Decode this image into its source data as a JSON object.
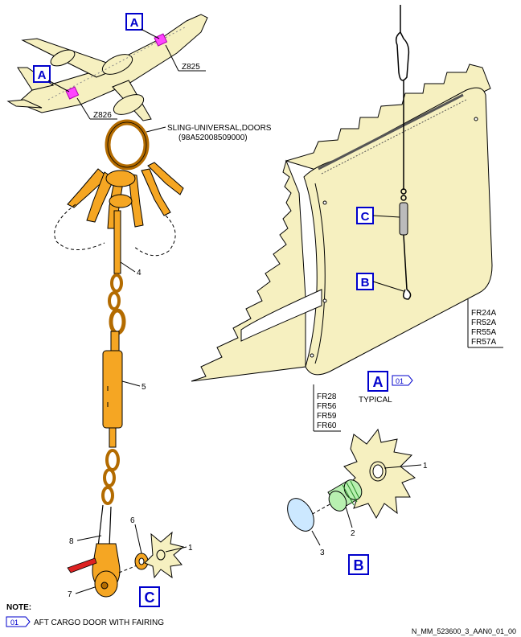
{
  "colors": {
    "panel": "#f6f0c0",
    "sling": "#f5a623",
    "callout": "#0000cc",
    "highlight": "#ff44ff",
    "accent_red": "#dd2222",
    "lens": "#cce8ff"
  },
  "aircraft": {
    "callout_top": "A",
    "callout_bottom": "A",
    "zone_top": "Z825",
    "zone_bottom": "Z826"
  },
  "sling": {
    "title": "SLING-UNIVERSAL,DOORS",
    "part_number": "(98A52008509000)",
    "item_4": "4",
    "item_5": "5",
    "item_6": "6",
    "item_7": "7",
    "item_8": "8",
    "item_1": "1"
  },
  "door": {
    "callout_b": "B",
    "callout_c": "C",
    "frames_right": [
      "FR24A",
      "FR52A",
      "FR55A",
      "FR57A"
    ],
    "frames_left": [
      "FR28",
      "FR56",
      "FR59",
      "FR60"
    ],
    "view_label": "A",
    "view_ref": "01",
    "view_caption": "TYPICAL"
  },
  "detail_b": {
    "item_1": "1",
    "item_2": "2",
    "item_3": "3",
    "label": "B"
  },
  "detail_c": {
    "label": "C"
  },
  "note": {
    "heading": "NOTE:",
    "ref": "01",
    "text": "AFT CARGO DOOR WITH FAIRING"
  },
  "drawing_id": "N_MM_523600_3_AAN0_01_00"
}
